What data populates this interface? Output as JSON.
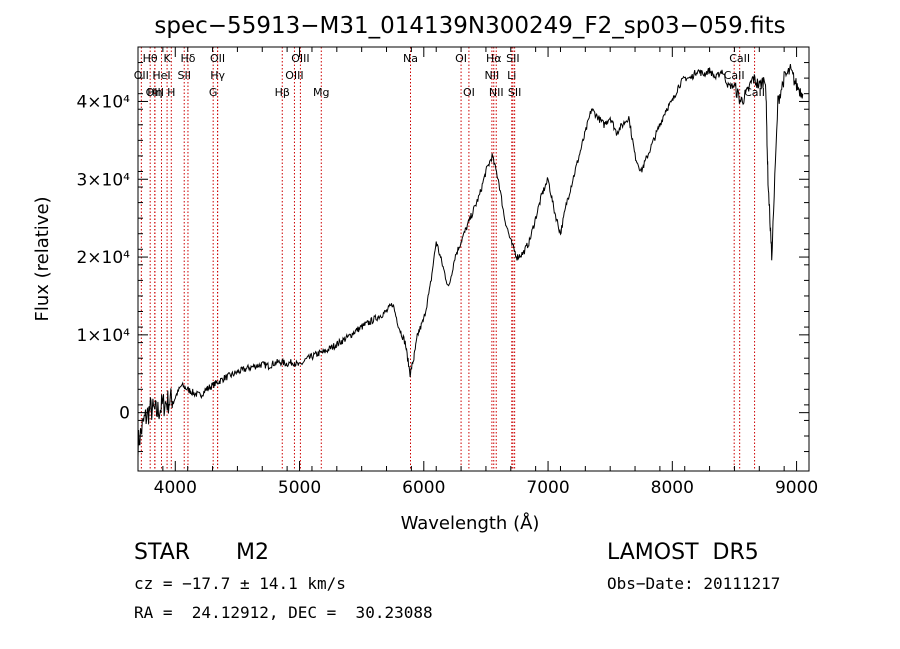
{
  "chart_data": {
    "type": "line",
    "title": "spec−55913−M31_014139N300249_F2_sp03−059.fits",
    "xlabel": "Wavelength (Å)",
    "ylabel": "Flux (relative)",
    "xlim": [
      3700,
      9100
    ],
    "ylim": [
      -7500,
      47000
    ],
    "xticks": [
      4000,
      5000,
      6000,
      7000,
      8000,
      9000
    ],
    "yticks": [
      0,
      10000,
      20000,
      30000,
      40000
    ],
    "ytick_labels": [
      "0",
      "1×10⁴",
      "2×10⁴",
      "3×10⁴",
      "4×10⁴"
    ],
    "grid": false,
    "series": [
      {
        "x": [
          3700,
          3750,
          3800,
          3850,
          3900,
          3950,
          4000,
          4050,
          4100,
          4150,
          4200,
          4250,
          4300,
          4350,
          4400,
          4450,
          4500,
          4550,
          4600,
          4650,
          4700,
          4750,
          4800,
          4850,
          4900,
          4950,
          5000,
          5050,
          5100,
          5150,
          5200,
          5250,
          5300,
          5350,
          5400,
          5450,
          5500,
          5550,
          5600,
          5650,
          5700,
          5750,
          5800,
          5850,
          5890,
          5920,
          5950,
          6000,
          6050,
          6100,
          6150,
          6200,
          6250,
          6300,
          6350,
          6400,
          6450,
          6500,
          6550,
          6600,
          6650,
          6700,
          6750,
          6800,
          6850,
          6900,
          6950,
          7000,
          7050,
          7100,
          7150,
          7200,
          7250,
          7300,
          7350,
          7400,
          7450,
          7500,
          7550,
          7600,
          7650,
          7700,
          7750,
          7800,
          7850,
          7900,
          7950,
          8000,
          8050,
          8100,
          8150,
          8200,
          8250,
          8300,
          8350,
          8400,
          8450,
          8500,
          8550,
          8600,
          8650,
          8700,
          8750,
          8770,
          8800,
          8850,
          8900,
          8950,
          9000,
          9050
        ],
        "y": [
          -4000,
          -1000,
          500,
          0,
          1000,
          1500,
          2000,
          3500,
          3000,
          2500,
          2200,
          3000,
          3500,
          4000,
          4500,
          4800,
          5200,
          5500,
          5800,
          6000,
          6200,
          6000,
          6400,
          6500,
          6300,
          6500,
          6000,
          6800,
          7200,
          7600,
          7800,
          8300,
          8800,
          9300,
          9800,
          10500,
          11000,
          11500,
          12000,
          12500,
          13000,
          14000,
          11000,
          9000,
          5000,
          7000,
          10000,
          12000,
          16000,
          22000,
          19000,
          16000,
          20000,
          22000,
          24000,
          26000,
          28000,
          31000,
          33000,
          30000,
          25000,
          22000,
          20000,
          20500,
          22000,
          25000,
          28000,
          30000,
          26000,
          23000,
          27000,
          30000,
          33000,
          36000,
          39000,
          38000,
          37000,
          38000,
          36000,
          37000,
          38000,
          33000,
          31000,
          33000,
          35000,
          37000,
          39000,
          40000,
          42000,
          43000,
          43000,
          44000,
          43500,
          44000,
          43000,
          44000,
          42000,
          42000,
          40000,
          41000,
          43000,
          42000,
          43000,
          30000,
          20000,
          40000,
          43000,
          44000,
          42000,
          41000
        ]
      }
    ],
    "lines": [
      {
        "label": "Hθ",
        "x": 3798
      },
      {
        "label": "K",
        "x": 3934
      },
      {
        "label": "Hδ",
        "x": 4102
      },
      {
        "label": "OII",
        "x": 4340
      },
      {
        "label": "OIII",
        "x": 5007
      },
      {
        "label": "Na",
        "x": 5893
      },
      {
        "label": "OI",
        "x": 6300
      },
      {
        "label": "Hα",
        "x": 6563
      },
      {
        "label": "SII",
        "x": 6717
      },
      {
        "label": "CaII",
        "x": 8542
      },
      {
        "label": "OII",
        "x": 3727
      },
      {
        "label": "HeI",
        "x": 3889
      },
      {
        "label": "SII",
        "x": 4072
      },
      {
        "label": "Hγ",
        "x": 4341
      },
      {
        "label": "OIII",
        "x": 4959
      },
      {
        "label": "NII",
        "x": 6548
      },
      {
        "label": "Li",
        "x": 6708
      },
      {
        "label": "CaII",
        "x": 8498
      },
      {
        "label": "OIII",
        "x": 3835
      },
      {
        "label": "Hη",
        "x": 3836
      },
      {
        "label": "H",
        "x": 3968
      },
      {
        "label": "G",
        "x": 4305
      },
      {
        "label": "Hβ",
        "x": 4861
      },
      {
        "label": "Mg",
        "x": 5175
      },
      {
        "label": "OI",
        "x": 6363
      },
      {
        "label": "NII",
        "x": 6583
      },
      {
        "label": "SII",
        "x": 6731
      },
      {
        "label": "CaII",
        "x": 8662
      }
    ]
  },
  "info": {
    "class": "STAR",
    "subclass": "M2",
    "survey": "LAMOST  DR5",
    "cz": "cz = −17.7 ± 14.1 km/s",
    "obs_date": "Obs−Date: 20111217",
    "coords": "RA =  24.12912, DEC =  30.23088"
  }
}
